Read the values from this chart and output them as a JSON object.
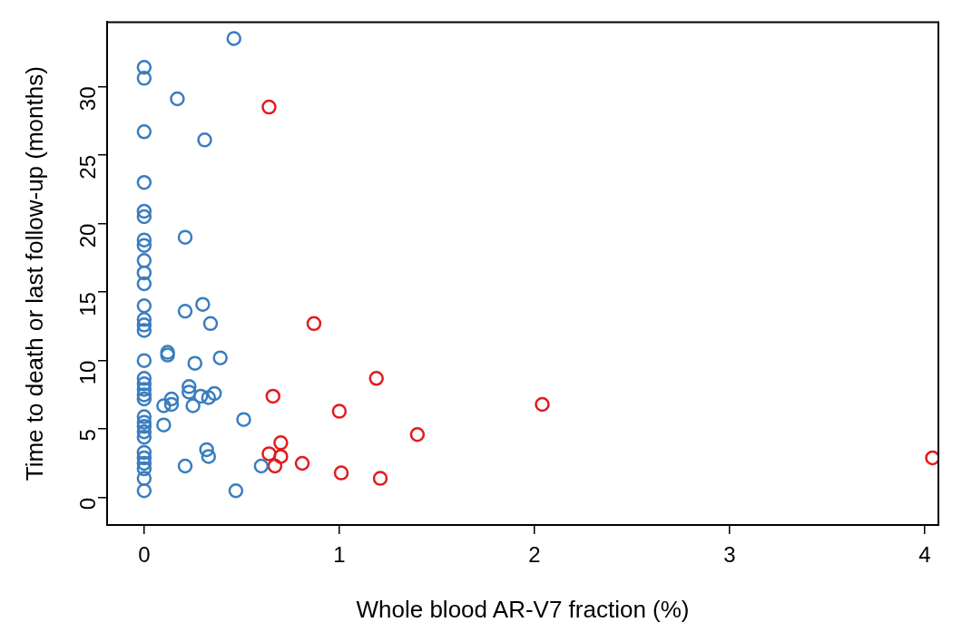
{
  "chart_data": {
    "type": "scatter",
    "xlabel": "Whole blood AR-V7 fraction (%)",
    "ylabel": "Time to death or last follow-up (months)",
    "xlim": [
      -0.19,
      4.07
    ],
    "ylim": [
      -2.0,
      34.7
    ],
    "xticks": [
      0,
      1,
      2,
      3,
      4
    ],
    "yticks": [
      0,
      5,
      10,
      15,
      20,
      25,
      30
    ],
    "grid": false,
    "legend": false,
    "marker": "circle",
    "series": [
      {
        "color": "#3a7dbf",
        "x": [
          0,
          0,
          0,
          0,
          0,
          0,
          0,
          0,
          0,
          0,
          0,
          0,
          0,
          0,
          0,
          0,
          0,
          0,
          0,
          0,
          0,
          0,
          0,
          0,
          0,
          0,
          0,
          0,
          0,
          0,
          0,
          0,
          0.46,
          0.17,
          0.31,
          0.21,
          0.21,
          0.3,
          0.34,
          0.12,
          0.12,
          0.26,
          0.39,
          0.23,
          0.23,
          0.14,
          0.14,
          0.1,
          0.25,
          0.29,
          0.33,
          0.36,
          0.1,
          0.51,
          0.32,
          0.33,
          0.21,
          0.6,
          0.47
        ],
        "values": [
          31.4,
          30.6,
          26.7,
          23.0,
          20.9,
          20.5,
          18.8,
          18.4,
          17.3,
          16.4,
          15.6,
          14.0,
          13.0,
          12.6,
          12.2,
          10.0,
          8.7,
          8.3,
          7.9,
          7.5,
          7.2,
          5.9,
          5.5,
          5.2,
          4.8,
          4.4,
          3.3,
          2.9,
          2.5,
          2.1,
          1.4,
          0.5,
          33.5,
          29.1,
          26.1,
          19.0,
          13.6,
          14.1,
          12.7,
          10.6,
          10.4,
          9.8,
          10.2,
          8.1,
          7.7,
          7.2,
          6.8,
          6.7,
          6.7,
          7.4,
          7.3,
          7.6,
          5.3,
          5.7,
          3.5,
          3.0,
          2.3,
          2.3,
          0.5
        ]
      },
      {
        "color": "#e31a1c",
        "x": [
          0.64,
          0.87,
          1.19,
          0.66,
          1.0,
          2.04,
          0.7,
          1.4,
          0.64,
          0.7,
          0.67,
          0.81,
          1.01,
          1.21,
          4.04
        ],
        "values": [
          28.5,
          12.7,
          8.7,
          7.4,
          6.3,
          6.8,
          4.0,
          4.6,
          3.2,
          3.0,
          2.3,
          2.5,
          1.8,
          1.4,
          2.9
        ]
      }
    ]
  }
}
